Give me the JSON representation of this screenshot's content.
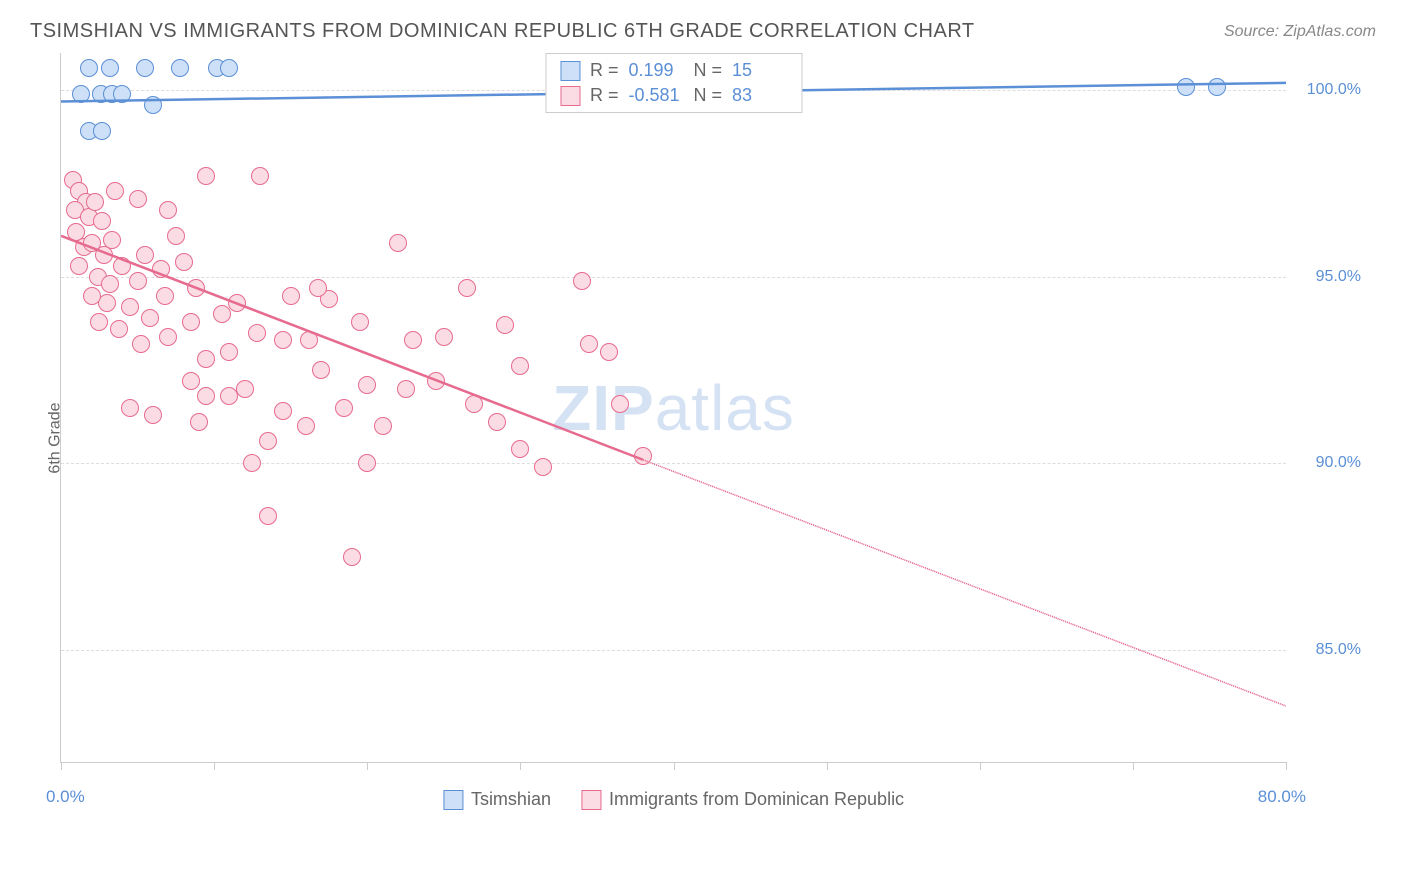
{
  "title": "TSIMSHIAN VS IMMIGRANTS FROM DOMINICAN REPUBLIC 6TH GRADE CORRELATION CHART",
  "source": "Source: ZipAtlas.com",
  "watermark_a": "ZIP",
  "watermark_b": "atlas",
  "chart": {
    "type": "scatter",
    "ylabel": "6th Grade",
    "xlim": [
      0,
      80
    ],
    "ylim": [
      82,
      101
    ],
    "x_min_label": "0.0%",
    "x_max_label": "80.0%",
    "y_ticks": [
      {
        "v": 100,
        "label": "100.0%"
      },
      {
        "v": 95,
        "label": "95.0%"
      },
      {
        "v": 90,
        "label": "90.0%"
      },
      {
        "v": 85,
        "label": "85.0%"
      }
    ],
    "x_ticks": [
      0,
      10,
      20,
      30,
      40,
      50,
      60,
      70,
      80
    ],
    "grid_color": "#dddddd",
    "background_color": "#ffffff",
    "series": [
      {
        "name": "Tsimshian",
        "color_fill": "#cde0f7",
        "color_stroke": "#5b8fd6",
        "R": "0.199",
        "N": "15",
        "trend": {
          "x1": 0,
          "y1": 99.7,
          "x2_solid": 80,
          "y2_solid": 100.2,
          "dashed": false
        },
        "points": [
          {
            "x": 1.8,
            "y": 100.6
          },
          {
            "x": 3.2,
            "y": 100.6
          },
          {
            "x": 5.5,
            "y": 100.6
          },
          {
            "x": 7.8,
            "y": 100.6
          },
          {
            "x": 10.2,
            "y": 100.6
          },
          {
            "x": 11.0,
            "y": 100.6
          },
          {
            "x": 1.3,
            "y": 99.9
          },
          {
            "x": 2.6,
            "y": 99.9
          },
          {
            "x": 3.3,
            "y": 99.9
          },
          {
            "x": 4.0,
            "y": 99.9
          },
          {
            "x": 6.0,
            "y": 99.6
          },
          {
            "x": 1.8,
            "y": 98.9
          },
          {
            "x": 2.7,
            "y": 98.9
          },
          {
            "x": 73.5,
            "y": 100.1
          },
          {
            "x": 75.5,
            "y": 100.1
          }
        ]
      },
      {
        "name": "Immigrants from Dominican Republic",
        "color_fill": "#fbdce4",
        "color_stroke": "#e66b8f",
        "R": "-0.581",
        "N": "83",
        "trend": {
          "x1": 0,
          "y1": 96.1,
          "x2_solid": 38,
          "y2_solid": 90.1,
          "x2_dash": 80,
          "y2_dash": 83.5,
          "dashed": true
        },
        "points": [
          {
            "x": 0.8,
            "y": 97.6
          },
          {
            "x": 1.2,
            "y": 97.3
          },
          {
            "x": 1.6,
            "y": 97.0
          },
          {
            "x": 0.9,
            "y": 96.8
          },
          {
            "x": 1.8,
            "y": 96.6
          },
          {
            "x": 2.2,
            "y": 97.0
          },
          {
            "x": 2.7,
            "y": 96.5
          },
          {
            "x": 1.0,
            "y": 96.2
          },
          {
            "x": 1.5,
            "y": 95.8
          },
          {
            "x": 2.0,
            "y": 95.9
          },
          {
            "x": 2.8,
            "y": 95.6
          },
          {
            "x": 3.3,
            "y": 96.0
          },
          {
            "x": 1.2,
            "y": 95.3
          },
          {
            "x": 2.4,
            "y": 95.0
          },
          {
            "x": 3.2,
            "y": 94.8
          },
          {
            "x": 4.0,
            "y": 95.3
          },
          {
            "x": 5.0,
            "y": 94.9
          },
          {
            "x": 7.0,
            "y": 96.8
          },
          {
            "x": 9.5,
            "y": 97.7
          },
          {
            "x": 13.0,
            "y": 97.7
          },
          {
            "x": 4.5,
            "y": 94.2
          },
          {
            "x": 5.8,
            "y": 93.9
          },
          {
            "x": 6.8,
            "y": 94.5
          },
          {
            "x": 8.0,
            "y": 95.4
          },
          {
            "x": 3.8,
            "y": 93.6
          },
          {
            "x": 5.2,
            "y": 93.2
          },
          {
            "x": 7.0,
            "y": 93.4
          },
          {
            "x": 8.5,
            "y": 93.8
          },
          {
            "x": 22.0,
            "y": 95.9
          },
          {
            "x": 11.5,
            "y": 94.3
          },
          {
            "x": 12.8,
            "y": 93.5
          },
          {
            "x": 15.0,
            "y": 94.5
          },
          {
            "x": 14.5,
            "y": 93.3
          },
          {
            "x": 16.2,
            "y": 93.3
          },
          {
            "x": 17.5,
            "y": 94.4
          },
          {
            "x": 9.5,
            "y": 92.8
          },
          {
            "x": 11.0,
            "y": 93.0
          },
          {
            "x": 16.8,
            "y": 94.7
          },
          {
            "x": 23.0,
            "y": 93.3
          },
          {
            "x": 25.0,
            "y": 93.4
          },
          {
            "x": 26.5,
            "y": 94.7
          },
          {
            "x": 29.0,
            "y": 93.7
          },
          {
            "x": 34.0,
            "y": 94.9
          },
          {
            "x": 34.5,
            "y": 93.2
          },
          {
            "x": 35.8,
            "y": 93.0
          },
          {
            "x": 30.0,
            "y": 92.6
          },
          {
            "x": 8.5,
            "y": 92.2
          },
          {
            "x": 9.5,
            "y": 91.8
          },
          {
            "x": 11.0,
            "y": 91.8
          },
          {
            "x": 12.0,
            "y": 92.0
          },
          {
            "x": 4.5,
            "y": 91.5
          },
          {
            "x": 6.0,
            "y": 91.3
          },
          {
            "x": 14.5,
            "y": 91.4
          },
          {
            "x": 16.0,
            "y": 91.0
          },
          {
            "x": 13.5,
            "y": 90.6
          },
          {
            "x": 18.5,
            "y": 91.5
          },
          {
            "x": 20.0,
            "y": 92.1
          },
          {
            "x": 21.0,
            "y": 91.0
          },
          {
            "x": 24.5,
            "y": 92.2
          },
          {
            "x": 27.0,
            "y": 91.6
          },
          {
            "x": 28.5,
            "y": 91.1
          },
          {
            "x": 36.5,
            "y": 91.6
          },
          {
            "x": 30.0,
            "y": 90.4
          },
          {
            "x": 31.5,
            "y": 89.9
          },
          {
            "x": 38.0,
            "y": 90.2
          },
          {
            "x": 12.5,
            "y": 90.0
          },
          {
            "x": 20.0,
            "y": 90.0
          },
          {
            "x": 13.5,
            "y": 88.6
          },
          {
            "x": 19.0,
            "y": 87.5
          },
          {
            "x": 5.5,
            "y": 95.6
          },
          {
            "x": 7.5,
            "y": 96.1
          },
          {
            "x": 3.0,
            "y": 94.3
          },
          {
            "x": 8.8,
            "y": 94.7
          },
          {
            "x": 10.5,
            "y": 94.0
          },
          {
            "x": 19.5,
            "y": 93.8
          },
          {
            "x": 6.5,
            "y": 95.2
          },
          {
            "x": 17.0,
            "y": 92.5
          },
          {
            "x": 22.5,
            "y": 92.0
          },
          {
            "x": 2.0,
            "y": 94.5
          },
          {
            "x": 3.5,
            "y": 97.3
          },
          {
            "x": 5.0,
            "y": 97.1
          },
          {
            "x": 9.0,
            "y": 91.1
          },
          {
            "x": 2.5,
            "y": 93.8
          }
        ]
      }
    ]
  }
}
